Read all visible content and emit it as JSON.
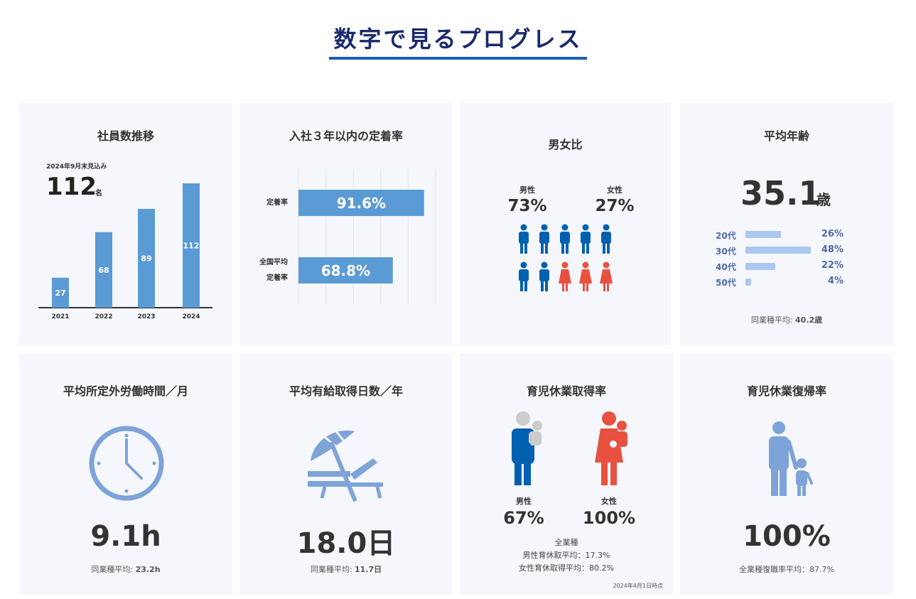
{
  "page_title": "数字で見るプログレス",
  "cards": {
    "employees": {
      "title": "社員数推移",
      "note": "2024年9月末見込み",
      "value": "112",
      "unit": "名"
    },
    "retention": {
      "title": "入社３年以内の定着率",
      "row1_label": "定着率",
      "row2_label_line1": "全国平均",
      "row2_label_line2": "定着率"
    },
    "gender": {
      "title": "男女比",
      "male_label": "男性",
      "male_value": "73%",
      "female_label": "女性",
      "female_value": "27%",
      "male_count": 7,
      "female_count": 3,
      "male_color": "#0060b0",
      "female_color": "#e8513f"
    },
    "age": {
      "title": "平均年齢",
      "value": "35.1",
      "unit": "歳",
      "rows": [
        {
          "label": "20代",
          "value": "26%",
          "pct": 26
        },
        {
          "label": "30代",
          "value": "48%",
          "pct": 48
        },
        {
          "label": "40代",
          "value": "22%",
          "pct": 22
        },
        {
          "label": "50代",
          "value": "4%",
          "pct": 4
        }
      ],
      "footnote_label": "同業種平均: ",
      "footnote_value": "40.2歳"
    },
    "overtime": {
      "title": "平均所定外労働時間／月",
      "value": "9.1h",
      "footnote_label": "同業種平均: ",
      "footnote_value": "23.2h",
      "icon": "clock-icon"
    },
    "paid_leave": {
      "title": "平均有給取得日数／年",
      "value": "18.0日",
      "footnote_label": "同業種平均: ",
      "footnote_value": "11.7日",
      "icon": "beach-umbrella-icon"
    },
    "childcare": {
      "title": "育児休業取得率",
      "male_label": "男性",
      "male_value": "67%",
      "female_label": "女性",
      "female_value": "100%",
      "industry_label": "全業種",
      "male_avg": "男性育休取平均：17.3%",
      "female_avg": "女性育休取得平均：80.2%",
      "date_note": "2024年4月1日時点"
    },
    "return": {
      "title": "育児休業復帰率",
      "value": "100%",
      "footnote": "全業種復職率平均：87.7%",
      "icon": "parent-child-icon"
    }
  },
  "chart_data": [
    {
      "type": "bar",
      "categories": [
        "2021",
        "2022",
        "2023",
        "2024"
      ],
      "values": [
        27,
        68,
        89,
        112
      ],
      "ylim": [
        0,
        112
      ],
      "grid": false,
      "color": "#5b9bd5"
    },
    {
      "type": "bar",
      "orientation": "horizontal",
      "categories": [
        "定着率",
        "全国平均 定着率"
      ],
      "values": [
        91.6,
        68.8
      ],
      "value_labels": [
        "91.6%",
        "68.8%"
      ],
      "xlim": [
        0,
        100
      ],
      "grid": true,
      "color": "#5b9bd5"
    }
  ]
}
